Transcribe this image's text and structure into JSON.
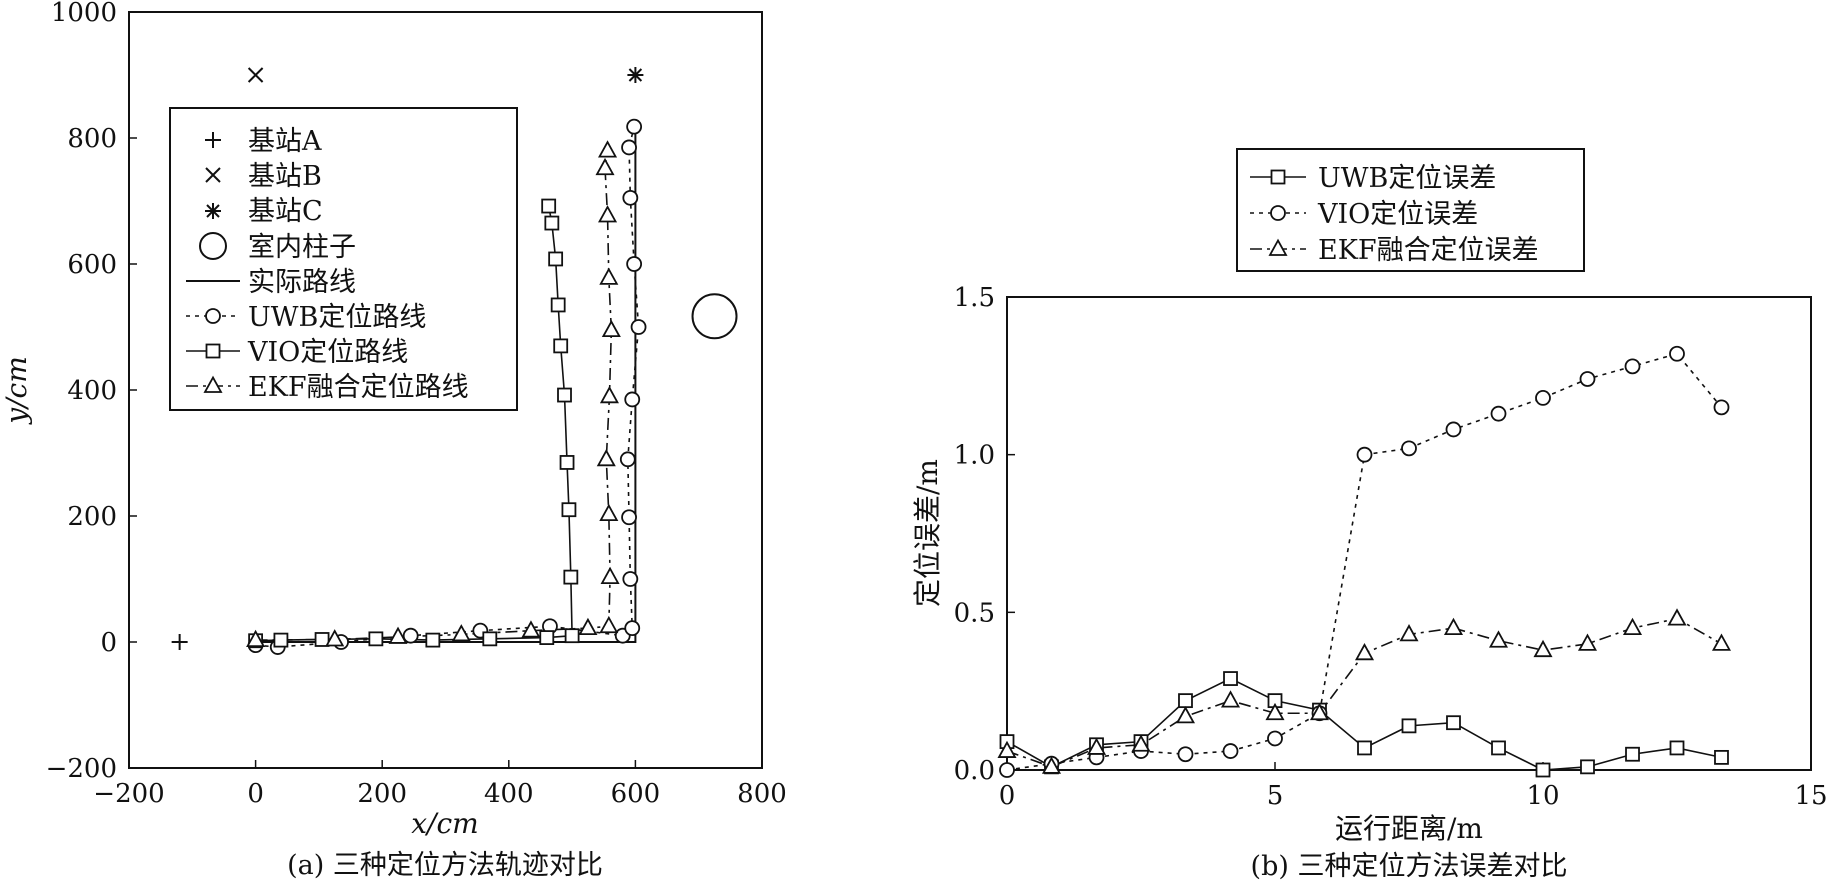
{
  "chart_data": [
    {
      "type": "scatter",
      "caption": "(a) 三种定位方法轨迹对比",
      "xlabel": "x/cm",
      "ylabel": "y/cm",
      "xlim": [
        -200,
        800
      ],
      "ylim": [
        -200,
        1000
      ],
      "xticks": [
        "−200",
        "0",
        "200",
        "400",
        "600",
        "800"
      ],
      "yticks": [
        "−200",
        "0",
        "200",
        "400",
        "600",
        "800",
        "1000"
      ],
      "legend": [
        "基站A",
        "基站B",
        "基站C",
        "室内柱子",
        "实际路线",
        "UWB定位路线",
        "VIO定位路线",
        "EKF融合定位路线"
      ],
      "stations": {
        "A": {
          "x": -120,
          "y": 0
        },
        "B": {
          "x": 0,
          "y": 900
        },
        "C": {
          "x": 600,
          "y": 900
        }
      },
      "pillar": {
        "x": 725,
        "y": 517
      },
      "series": [
        {
          "name": "实际路线",
          "marker": "none",
          "style": "solid",
          "points": [
            [
              0,
              0
            ],
            [
              600,
              0
            ],
            [
              600,
              820
            ]
          ]
        },
        {
          "name": "UWB定位路线",
          "marker": "circle",
          "style": "dotted",
          "points": [
            [
              0,
              -5
            ],
            [
              35,
              -8
            ],
            [
              135,
              0
            ],
            [
              245,
              10
            ],
            [
              355,
              18
            ],
            [
              465,
              25
            ],
            [
              580,
              10
            ],
            [
              595,
              22
            ],
            [
              592,
              100
            ],
            [
              590,
              198
            ],
            [
              588,
              290
            ],
            [
              595,
              385
            ],
            [
              605,
              500
            ],
            [
              598,
              600
            ],
            [
              592,
              705
            ],
            [
              590,
              785
            ],
            [
              598,
              818
            ]
          ]
        },
        {
          "name": "VIO定位路线",
          "marker": "square",
          "style": "solid",
          "points": [
            [
              0,
              2
            ],
            [
              40,
              3
            ],
            [
              105,
              4
            ],
            [
              190,
              5
            ],
            [
              280,
              3
            ],
            [
              370,
              5
            ],
            [
              460,
              7
            ],
            [
              500,
              10
            ],
            [
              498,
              103
            ],
            [
              495,
              210
            ],
            [
              492,
              285
            ],
            [
              488,
              392
            ],
            [
              482,
              470
            ],
            [
              478,
              535
            ],
            [
              474,
              608
            ],
            [
              468,
              665
            ],
            [
              463,
              692
            ]
          ]
        },
        {
          "name": "EKF融合定位路线",
          "marker": "triangle",
          "style": "dashdot",
          "points": [
            [
              0,
              3
            ],
            [
              125,
              4
            ],
            [
              225,
              8
            ],
            [
              325,
              12
            ],
            [
              435,
              18
            ],
            [
              525,
              22
            ],
            [
              558,
              25
            ],
            [
              560,
              103
            ],
            [
              558,
              203
            ],
            [
              554,
              290
            ],
            [
              559,
              390
            ],
            [
              562,
              495
            ],
            [
              558,
              578
            ],
            [
              556,
              677
            ],
            [
              552,
              752
            ],
            [
              556,
              780
            ]
          ]
        }
      ]
    },
    {
      "type": "line",
      "caption": "(b) 三种定位方法误差对比",
      "xlabel": "运行距离/m",
      "ylabel": "定位误差/m",
      "xlim": [
        0,
        15
      ],
      "ylim": [
        0,
        1.5
      ],
      "xticks": [
        "0",
        "5",
        "10",
        "15"
      ],
      "yticks": [
        "0.0",
        "0.5",
        "1.0",
        "1.5"
      ],
      "x": [
        0,
        0.83,
        1.67,
        2.5,
        3.33,
        4.17,
        5.0,
        5.83,
        6.67,
        7.5,
        8.33,
        9.17,
        10.0,
        10.83,
        11.67,
        12.5,
        13.33
      ],
      "series": [
        {
          "name": "UWB定位误差",
          "marker": "square",
          "style": "solid",
          "values": [
            0.09,
            0.01,
            0.08,
            0.09,
            0.22,
            0.29,
            0.22,
            0.19,
            0.07,
            0.14,
            0.15,
            0.07,
            0.0,
            0.01,
            0.05,
            0.07,
            0.04
          ]
        },
        {
          "name": "VIO定位误差",
          "marker": "circle",
          "style": "dotted",
          "values": [
            0.0,
            0.02,
            0.04,
            0.06,
            0.05,
            0.06,
            0.1,
            0.18,
            1.0,
            1.02,
            1.08,
            1.13,
            1.18,
            1.24,
            1.28,
            1.32,
            1.15
          ]
        },
        {
          "name": "EKF融合定位误差",
          "marker": "triangle",
          "style": "dashdot",
          "values": [
            0.06,
            0.01,
            0.07,
            0.08,
            0.17,
            0.22,
            0.18,
            0.18,
            0.37,
            0.43,
            0.45,
            0.41,
            0.38,
            0.4,
            0.45,
            0.48,
            0.4
          ]
        }
      ]
    }
  ]
}
